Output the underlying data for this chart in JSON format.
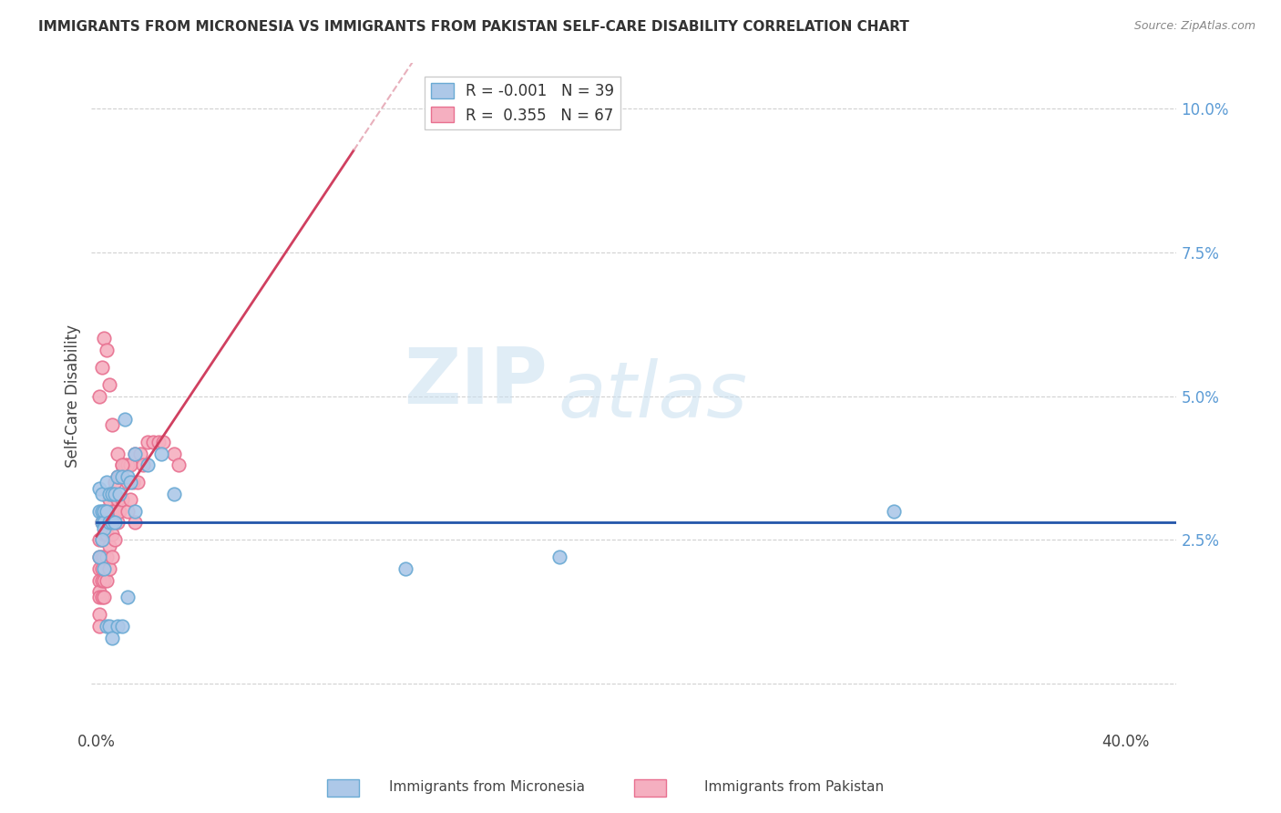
{
  "title": "IMMIGRANTS FROM MICRONESIA VS IMMIGRANTS FROM PAKISTAN SELF-CARE DISABILITY CORRELATION CHART",
  "source": "Source: ZipAtlas.com",
  "ylabel": "Self-Care Disability",
  "xlim": [
    -0.002,
    0.42
  ],
  "ylim": [
    -0.008,
    0.108
  ],
  "micronesia_color": "#adc8e8",
  "pakistan_color": "#f5afc0",
  "micronesia_edge": "#6aaad4",
  "pakistan_edge": "#e87090",
  "trend_micronesia_color": "#2255aa",
  "trend_pakistan_color": "#d04060",
  "trend_pakistan_dash_color": "#e8b0bc",
  "legend_r_micronesia": "-0.001",
  "legend_n_micronesia": "39",
  "legend_r_pakistan": "0.355",
  "legend_n_pakistan": "67",
  "watermark_zip": "ZIP",
  "watermark_atlas": "atlas",
  "micronesia_x": [
    0.001,
    0.001,
    0.002,
    0.002,
    0.002,
    0.003,
    0.003,
    0.003,
    0.004,
    0.004,
    0.005,
    0.005,
    0.006,
    0.006,
    0.007,
    0.007,
    0.008,
    0.009,
    0.01,
    0.011,
    0.012,
    0.013,
    0.015,
    0.001,
    0.002,
    0.003,
    0.004,
    0.005,
    0.006,
    0.008,
    0.01,
    0.012,
    0.015,
    0.02,
    0.025,
    0.03,
    0.31,
    0.18,
    0.12
  ],
  "micronesia_y": [
    0.03,
    0.034,
    0.03,
    0.033,
    0.028,
    0.03,
    0.028,
    0.027,
    0.035,
    0.03,
    0.028,
    0.033,
    0.028,
    0.033,
    0.028,
    0.033,
    0.036,
    0.033,
    0.036,
    0.046,
    0.036,
    0.035,
    0.04,
    0.022,
    0.025,
    0.02,
    0.01,
    0.01,
    0.008,
    0.01,
    0.01,
    0.015,
    0.03,
    0.038,
    0.04,
    0.033,
    0.03,
    0.022,
    0.02
  ],
  "pakistan_x": [
    0.001,
    0.001,
    0.001,
    0.001,
    0.001,
    0.001,
    0.001,
    0.001,
    0.002,
    0.002,
    0.002,
    0.002,
    0.002,
    0.002,
    0.003,
    0.003,
    0.003,
    0.003,
    0.003,
    0.004,
    0.004,
    0.004,
    0.004,
    0.005,
    0.005,
    0.005,
    0.005,
    0.006,
    0.006,
    0.006,
    0.006,
    0.007,
    0.007,
    0.007,
    0.008,
    0.008,
    0.008,
    0.009,
    0.009,
    0.01,
    0.01,
    0.011,
    0.012,
    0.012,
    0.013,
    0.013,
    0.014,
    0.015,
    0.015,
    0.016,
    0.017,
    0.018,
    0.02,
    0.022,
    0.024,
    0.026,
    0.03,
    0.032,
    0.001,
    0.002,
    0.003,
    0.004,
    0.005,
    0.006,
    0.008,
    0.01,
    0.012
  ],
  "pakistan_y": [
    0.025,
    0.022,
    0.02,
    0.018,
    0.016,
    0.015,
    0.012,
    0.01,
    0.028,
    0.025,
    0.022,
    0.02,
    0.018,
    0.015,
    0.03,
    0.026,
    0.022,
    0.018,
    0.015,
    0.03,
    0.026,
    0.022,
    0.018,
    0.032,
    0.028,
    0.024,
    0.02,
    0.033,
    0.03,
    0.026,
    0.022,
    0.035,
    0.03,
    0.025,
    0.036,
    0.032,
    0.028,
    0.036,
    0.03,
    0.038,
    0.032,
    0.038,
    0.038,
    0.03,
    0.038,
    0.032,
    0.035,
    0.04,
    0.028,
    0.035,
    0.04,
    0.038,
    0.042,
    0.042,
    0.042,
    0.042,
    0.04,
    0.038,
    0.05,
    0.055,
    0.06,
    0.058,
    0.052,
    0.045,
    0.04,
    0.038,
    0.035
  ]
}
